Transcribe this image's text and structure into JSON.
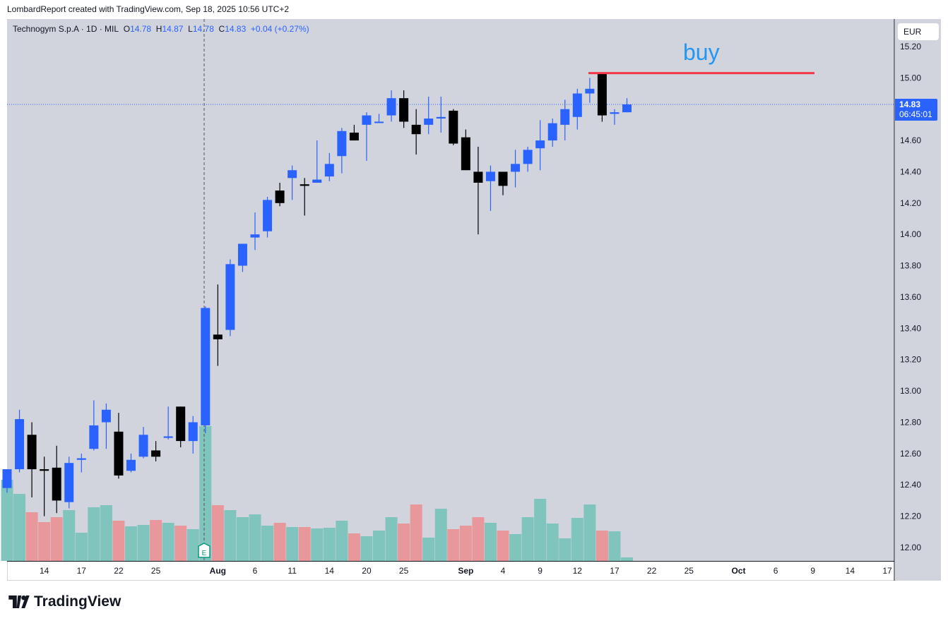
{
  "header": {
    "credit": "LombardReport created with TradingView.com, Sep 18, 2025 10:56 UTC+2"
  },
  "legend": {
    "symbol": "Technogym S.p.A · 1D · MIL",
    "o_label": "O",
    "o": "14.78",
    "h_label": "H",
    "h": "14.87",
    "l_label": "L",
    "l": "14.78",
    "c_label": "C",
    "c": "14.83",
    "change": "+0.04 (+0.27%)"
  },
  "currency": "EUR",
  "last_price": {
    "price": "14.83",
    "countdown": "06:45:01"
  },
  "annotation": {
    "text": "buy",
    "level": 15.03,
    "color": "#2196f3",
    "line_color": "#f23645"
  },
  "earnings_marker": "E",
  "brand": "TradingView",
  "colors": {
    "up": "#2962ff",
    "down": "#000000",
    "vol_up": "#7fc4bd",
    "vol_down": "#e8989a",
    "bg": "#d1d4dc"
  },
  "chart_data": {
    "type": "candlestick",
    "title": "Technogym S.p.A · 1D · MIL",
    "ylim": [
      11.9,
      15.3
    ],
    "y_ticks": [
      "15.20",
      "15.00",
      "14.60",
      "14.40",
      "14.20",
      "14.00",
      "13.80",
      "13.60",
      "13.40",
      "13.20",
      "13.00",
      "12.80",
      "12.60",
      "12.40",
      "12.20",
      "12.00"
    ],
    "x_ticks": [
      {
        "label": "14",
        "i": 3
      },
      {
        "label": "17",
        "i": 6
      },
      {
        "label": "22",
        "i": 9
      },
      {
        "label": "25",
        "i": 12
      },
      {
        "label": "Aug",
        "i": 17
      },
      {
        "label": "6",
        "i": 20
      },
      {
        "label": "11",
        "i": 23
      },
      {
        "label": "14",
        "i": 26
      },
      {
        "label": "20",
        "i": 29
      },
      {
        "label": "25",
        "i": 32
      },
      {
        "label": "Sep",
        "i": 37
      },
      {
        "label": "4",
        "i": 40
      },
      {
        "label": "9",
        "i": 43
      },
      {
        "label": "12",
        "i": 46
      },
      {
        "label": "17",
        "i": 49
      },
      {
        "label": "22",
        "i": 52
      },
      {
        "label": "25",
        "i": 55
      },
      {
        "label": "Oct",
        "i": 59
      },
      {
        "label": "6",
        "i": 62
      },
      {
        "label": "9",
        "i": 65
      },
      {
        "label": "14",
        "i": 68
      },
      {
        "label": "17",
        "i": 71
      }
    ],
    "ohlc": [
      [
        12.38,
        12.5,
        12.35,
        12.5
      ],
      [
        12.5,
        12.88,
        12.48,
        12.82
      ],
      [
        12.72,
        12.8,
        12.32,
        12.5
      ],
      [
        12.5,
        12.58,
        12.2,
        12.49
      ],
      [
        12.51,
        12.65,
        12.22,
        12.3
      ],
      [
        12.29,
        12.58,
        12.25,
        12.54
      ],
      [
        12.56,
        12.6,
        12.48,
        12.57
      ],
      [
        12.63,
        12.94,
        12.62,
        12.78
      ],
      [
        12.8,
        12.92,
        12.63,
        12.88
      ],
      [
        12.74,
        12.86,
        12.44,
        12.46
      ],
      [
        12.49,
        12.6,
        12.48,
        12.56
      ],
      [
        12.58,
        12.77,
        12.57,
        12.72
      ],
      [
        12.62,
        12.68,
        12.55,
        12.58
      ],
      [
        12.7,
        12.9,
        12.69,
        12.71
      ],
      [
        12.9,
        12.9,
        12.64,
        12.68
      ],
      [
        12.68,
        12.84,
        12.6,
        12.8
      ],
      [
        12.78,
        13.54,
        12.73,
        13.53
      ],
      [
        13.36,
        13.68,
        13.16,
        13.33
      ],
      [
        13.39,
        13.84,
        13.35,
        13.81
      ],
      [
        13.8,
        13.94,
        13.76,
        13.94
      ],
      [
        13.98,
        14.14,
        13.9,
        14.0
      ],
      [
        14.02,
        14.24,
        13.98,
        14.22
      ],
      [
        14.28,
        14.33,
        14.18,
        14.2
      ],
      [
        14.36,
        14.44,
        14.22,
        14.41
      ],
      [
        14.32,
        14.36,
        14.12,
        14.31
      ],
      [
        14.33,
        14.6,
        14.33,
        14.35
      ],
      [
        14.37,
        14.52,
        14.34,
        14.45
      ],
      [
        14.5,
        14.68,
        14.39,
        14.66
      ],
      [
        14.65,
        14.7,
        14.6,
        14.6
      ],
      [
        14.7,
        14.78,
        14.47,
        14.76
      ],
      [
        14.72,
        14.77,
        14.72,
        14.72
      ],
      [
        14.76,
        14.92,
        14.72,
        14.87
      ],
      [
        14.87,
        14.92,
        14.68,
        14.72
      ],
      [
        14.7,
        14.8,
        14.51,
        14.64
      ],
      [
        14.7,
        14.88,
        14.64,
        14.74
      ],
      [
        14.74,
        14.88,
        14.65,
        14.75
      ],
      [
        14.79,
        14.8,
        14.57,
        14.58
      ],
      [
        14.62,
        14.67,
        14.41,
        14.41
      ],
      [
        14.4,
        14.56,
        14.0,
        14.33
      ],
      [
        14.34,
        14.44,
        14.15,
        14.4
      ],
      [
        14.4,
        14.4,
        14.25,
        14.31
      ],
      [
        14.4,
        14.54,
        14.3,
        14.45
      ],
      [
        14.45,
        14.56,
        14.4,
        14.54
      ],
      [
        14.55,
        14.73,
        14.41,
        14.6
      ],
      [
        14.6,
        14.74,
        14.56,
        14.71
      ],
      [
        14.7,
        14.86,
        14.6,
        14.8
      ],
      [
        14.75,
        14.93,
        14.67,
        14.9
      ],
      [
        14.9,
        15.0,
        14.84,
        14.93
      ],
      [
        15.03,
        15.03,
        14.72,
        14.76
      ],
      [
        14.77,
        14.8,
        14.7,
        14.78
      ],
      [
        14.78,
        14.87,
        14.78,
        14.83
      ]
    ],
    "volume": [
      115,
      95,
      69,
      55,
      62,
      72,
      40,
      76,
      79,
      57,
      49,
      51,
      58,
      54,
      50,
      45,
      191,
      79,
      72,
      62,
      66,
      50,
      54,
      48,
      48,
      46,
      47,
      57,
      39,
      35,
      43,
      62,
      53,
      80,
      33,
      74,
      45,
      50,
      62,
      54,
      43,
      38,
      62,
      88,
      53,
      32,
      61,
      80,
      43,
      42,
      5
    ],
    "volume_up": [
      1,
      1,
      0,
      0,
      0,
      1,
      1,
      1,
      1,
      0,
      1,
      1,
      0,
      1,
      0,
      1,
      1,
      0,
      1,
      1,
      1,
      1,
      0,
      1,
      0,
      1,
      1,
      1,
      0,
      1,
      1,
      1,
      0,
      0,
      1,
      1,
      0,
      0,
      0,
      1,
      0,
      1,
      1,
      1,
      1,
      1,
      1,
      1,
      0,
      1,
      1
    ]
  }
}
